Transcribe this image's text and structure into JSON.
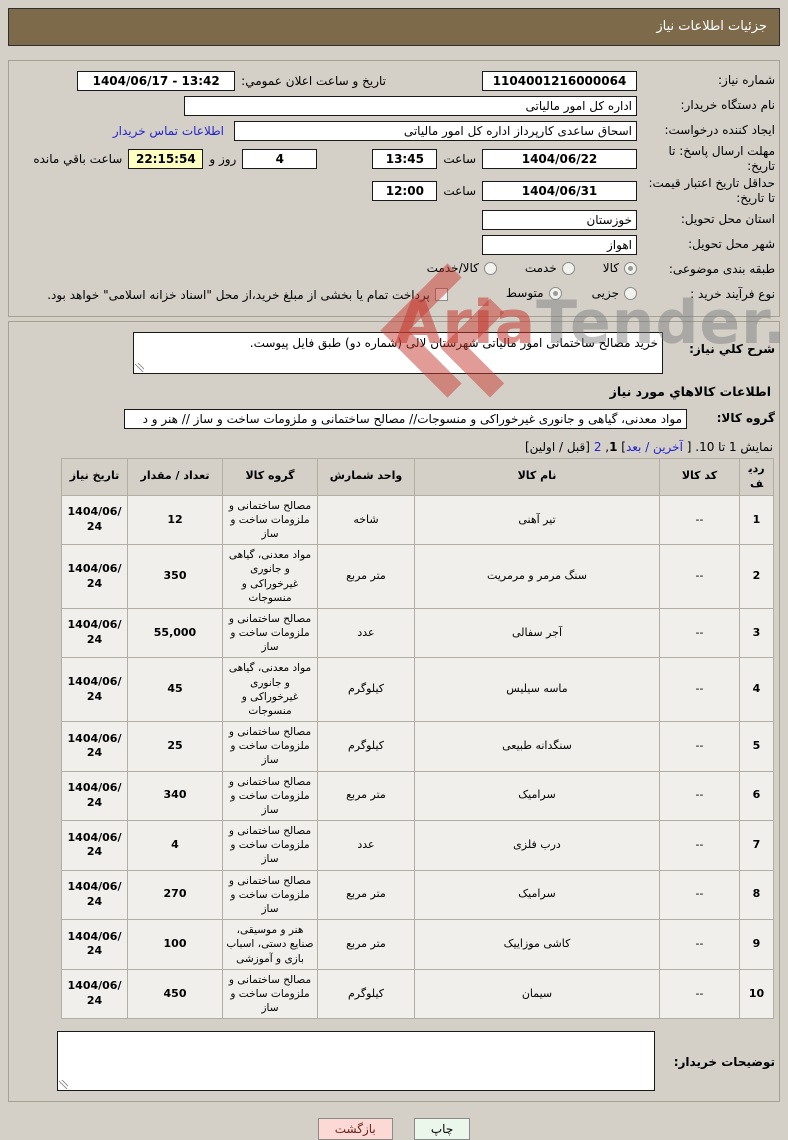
{
  "header": {
    "title": "جزئیات اطلاعات نیاز"
  },
  "colors": {
    "titlebar": "#7d6a4b",
    "page_bg": "#d4d0c8",
    "back_btn_bg": "#fdd9d6",
    "print_btn_bg": "#eaf7ea",
    "countdown_bg": "#ffffc2",
    "link": "#2323cc"
  },
  "watermark": {
    "brand_red": "Aria",
    "brand_gray": "Tender.neT"
  },
  "form": {
    "need_number": {
      "label": "شماره نیاز:",
      "value": "1104001216000064"
    },
    "announce": {
      "label": "تاریخ و ساعت اعلان عمومي:",
      "value": "1404/06/17 - 13:42"
    },
    "buyer_org": {
      "label": "نام دستگاه خریدار:",
      "value": "اداره کل امور مالیاتی"
    },
    "creator": {
      "label": "ایجاد کننده درخواست:",
      "value": "اسحاق ساعدی کارپرداز اداره کل امور مالیاتی",
      "contact_link": "اطلاعات تماس خریدار"
    },
    "deadline": {
      "label": "مهلت ارسال پاسخ: تا تاریخ:",
      "date": "1404/06/22",
      "hour_label": "ساعت",
      "time": "13:45",
      "days": "4",
      "days_label": "روز و",
      "remaining": "22:15:54",
      "remaining_label": "ساعت باقي مانده"
    },
    "validity": {
      "label": "حداقل تاریخ اعتبار قیمت: تا تاریخ:",
      "date": "1404/06/31",
      "hour_label": "ساعت",
      "time": "12:00"
    },
    "province": {
      "label": "استان محل تحویل:",
      "value": "خوزستان"
    },
    "city": {
      "label": "شهر محل تحویل:",
      "value": "اهواز"
    },
    "classification": {
      "label": "طبقه بندی موضوعی:",
      "options": [
        {
          "label": "کالا",
          "selected": true
        },
        {
          "label": "خدمت",
          "selected": false
        },
        {
          "label": "کالا/خدمت",
          "selected": false
        }
      ]
    },
    "process": {
      "label": "نوع فرآیند خرید :",
      "options": [
        {
          "label": "جزیی",
          "selected": false
        },
        {
          "label": "متوسط",
          "selected": true
        }
      ],
      "checkbox_label": "پرداخت تمام یا بخشی از مبلغ خرید،از محل \"اسناد خزانه اسلامی\" خواهد بود.",
      "checkbox_checked": false
    }
  },
  "description": {
    "label": "شرح کلي نیاز:",
    "value": "خرید مصالح ساختمانی امور مالیاتی شهرستان لالی (شماره دو) طبق فایل پیوست."
  },
  "goods": {
    "section_title": "اطلاعات کالاهاي مورد نیاز",
    "group": {
      "label": "گروه کالا:",
      "value": "مواد معدنی، گیاهی و جانوری غیرخوراکی و منسوجات// مصالح ساختمانی و ملزومات ساخت و ساز // هنر و د"
    },
    "pagination": {
      "showing": "نمایش 1 تا 10.",
      "nav_last_next": "آخرین / بعد",
      "current_page": "1",
      "other_page": "2",
      "nav_first_prev": "قبل / اولین"
    },
    "table": {
      "headers": [
        "ردیف",
        "کد کالا",
        "نام کالا",
        "واحد شمارش",
        "گروه کالا",
        "تعداد / مقدار",
        "تاریخ نیاز"
      ],
      "rows": [
        [
          "1",
          "--",
          "تیر آهنی",
          "شاخه",
          "مصالح ساختمانی و ملزومات ساخت و ساز",
          "12",
          "1404/06/24"
        ],
        [
          "2",
          "--",
          "سنگ مرمر و مرمریت",
          "متر مربع",
          "مواد معدنی، گیاهی و جانوری غیرخوراکی و منسوجات",
          "350",
          "1404/06/24"
        ],
        [
          "3",
          "--",
          "آجر سفالی",
          "عدد",
          "مصالح ساختمانی و ملزومات ساخت و ساز",
          "55,000",
          "1404/06/24"
        ],
        [
          "4",
          "--",
          "ماسه سیلیس",
          "کیلوگرم",
          "مواد معدنی، گیاهی و جانوری غیرخوراکی و منسوجات",
          "45",
          "1404/06/24"
        ],
        [
          "5",
          "--",
          "سنگدانه طبیعی",
          "کیلوگرم",
          "مصالح ساختمانی و ملزومات ساخت و ساز",
          "25",
          "1404/06/24"
        ],
        [
          "6",
          "--",
          "سرامیک",
          "متر مربع",
          "مصالح ساختمانی و ملزومات ساخت و ساز",
          "340",
          "1404/06/24"
        ],
        [
          "7",
          "--",
          "درب فلزی",
          "عدد",
          "مصالح ساختمانی و ملزومات ساخت و ساز",
          "4",
          "1404/06/24"
        ],
        [
          "8",
          "--",
          "سرامیک",
          "متر مربع",
          "مصالح ساختمانی و ملزومات ساخت و ساز",
          "270",
          "1404/06/24"
        ],
        [
          "9",
          "--",
          "کاشی موزاییک",
          "متر مربع",
          "هنر و موسیقی، صنایع دستی، اسباب بازی و آموزشی",
          "100",
          "1404/06/24"
        ],
        [
          "10",
          "--",
          "سیمان",
          "کیلوگرم",
          "مصالح ساختمانی و ملزومات ساخت و ساز",
          "450",
          "1404/06/24"
        ]
      ]
    }
  },
  "notes": {
    "label": "توضیحات خریدار:",
    "value": ""
  },
  "buttons": {
    "print": "چاپ",
    "back": "بازگشت"
  }
}
